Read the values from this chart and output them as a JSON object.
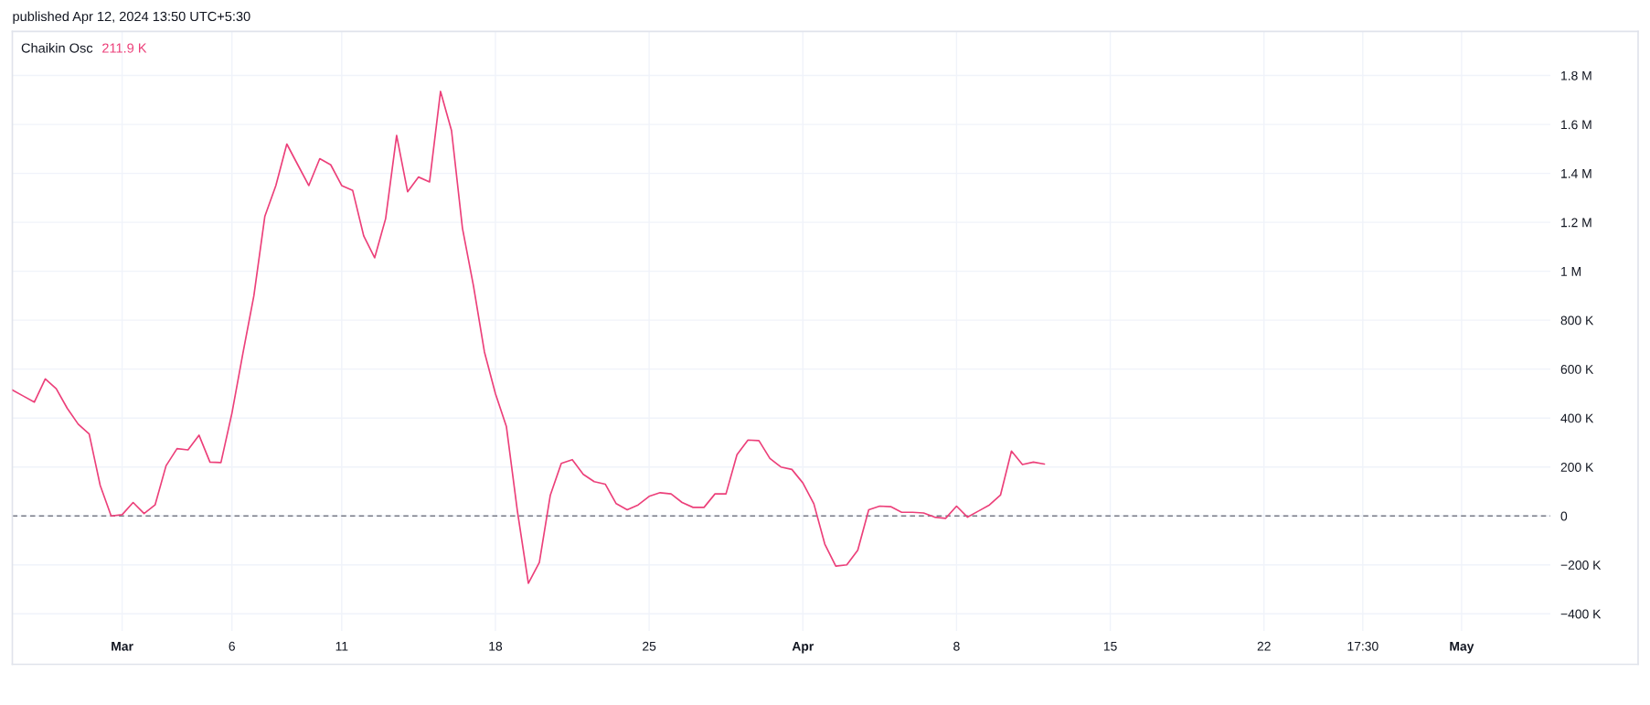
{
  "chart_data": {
    "type": "line",
    "title": "Chaikin Osc",
    "annotations": [
      "211.9 K",
      "published Apr 12, 2024 13:50 UTC+5:30"
    ],
    "x": [
      "2024-02-25T05:30",
      "2024-02-25T17:30",
      "2024-02-26T05:30",
      "2024-02-26T17:30",
      "2024-02-27T05:30",
      "2024-02-27T17:30",
      "2024-02-28T05:30",
      "2024-02-28T17:30",
      "2024-02-29T05:30",
      "2024-02-29T17:30",
      "2024-03-01T05:30",
      "2024-03-01T17:30",
      "2024-03-02T05:30",
      "2024-03-02T17:30",
      "2024-03-03T05:30",
      "2024-03-03T17:30",
      "2024-03-04T05:30",
      "2024-03-04T17:30",
      "2024-03-05T05:30",
      "2024-03-05T17:30",
      "2024-03-06T05:30",
      "2024-03-06T17:30",
      "2024-03-07T05:30",
      "2024-03-07T17:30",
      "2024-03-08T05:30",
      "2024-03-08T17:30",
      "2024-03-09T05:30",
      "2024-03-09T17:30",
      "2024-03-10T05:30",
      "2024-03-10T17:30",
      "2024-03-11T05:30",
      "2024-03-11T17:30",
      "2024-03-12T05:30",
      "2024-03-12T17:30",
      "2024-03-13T05:30",
      "2024-03-13T17:30",
      "2024-03-14T05:30",
      "2024-03-14T17:30",
      "2024-03-15T05:30",
      "2024-03-15T17:30",
      "2024-03-16T05:30",
      "2024-03-16T17:30",
      "2024-03-17T05:30",
      "2024-03-17T17:30",
      "2024-03-18T05:30",
      "2024-03-18T17:30",
      "2024-03-19T05:30",
      "2024-03-19T17:30",
      "2024-03-20T05:30",
      "2024-03-20T17:30",
      "2024-03-21T05:30",
      "2024-03-21T17:30",
      "2024-03-22T05:30",
      "2024-03-22T17:30",
      "2024-03-23T05:30",
      "2024-03-23T17:30",
      "2024-03-24T05:30",
      "2024-03-24T17:30",
      "2024-03-25T05:30",
      "2024-03-25T17:30",
      "2024-03-26T05:30",
      "2024-03-26T17:30",
      "2024-03-27T05:30",
      "2024-03-27T17:30",
      "2024-03-28T05:30",
      "2024-03-28T17:30",
      "2024-03-29T05:30",
      "2024-03-29T17:30",
      "2024-03-30T05:30",
      "2024-03-30T17:30",
      "2024-03-31T05:30",
      "2024-03-31T17:30",
      "2024-04-01T05:30",
      "2024-04-01T17:30",
      "2024-04-02T05:30",
      "2024-04-02T17:30",
      "2024-04-03T05:30",
      "2024-04-03T17:30",
      "2024-04-04T05:30",
      "2024-04-04T17:30",
      "2024-04-05T05:30",
      "2024-04-05T17:30",
      "2024-04-06T05:30",
      "2024-04-06T17:30",
      "2024-04-07T05:30",
      "2024-04-07T17:30",
      "2024-04-08T05:30",
      "2024-04-08T17:30",
      "2024-04-09T05:30",
      "2024-04-09T17:30",
      "2024-04-10T05:30",
      "2024-04-10T17:30",
      "2024-04-11T05:30",
      "2024-04-11T17:30",
      "2024-04-12T05:30"
    ],
    "series": [
      {
        "color": "#ec407a",
        "values": [
          515000,
          490000,
          465000,
          560000,
          520000,
          440000,
          375000,
          335000,
          125000,
          0,
          5000,
          55000,
          10000,
          45000,
          205000,
          275000,
          270000,
          330000,
          220000,
          218000,
          420000,
          665000,
          900000,
          1225000,
          1350000,
          1520000,
          1435000,
          1350000,
          1460000,
          1435000,
          1350000,
          1330000,
          1145000,
          1055000,
          1215000,
          1555000,
          1325000,
          1385000,
          1365000,
          1735000,
          1575000,
          1175000,
          940000,
          670000,
          500000,
          365000,
          20000,
          -275000,
          -190000,
          85000,
          215000,
          230000,
          170000,
          140000,
          130000,
          50000,
          25000,
          45000,
          80000,
          95000,
          90000,
          55000,
          35000,
          35000,
          90000,
          90000,
          250000,
          310000,
          308000,
          235000,
          200000,
          190000,
          135000,
          50000,
          -115000,
          -205000,
          -200000,
          -140000,
          25000,
          40000,
          38000,
          15000,
          15000,
          12000,
          -5000,
          -10000,
          40000,
          -5000,
          20000,
          45000,
          85000,
          265000,
          210000,
          220000,
          211900
        ]
      }
    ],
    "line_style": "solid",
    "xlim": [
      "2024-02-25T05:30",
      "2024-05-05T06:30"
    ],
    "ylim": [
      -470000,
      1980000
    ],
    "xticks": [
      {
        "value": "2024-03-01T05:30",
        "label": "Mar"
      },
      {
        "value": "2024-03-06T05:30",
        "label": "6"
      },
      {
        "value": "2024-03-11T05:30",
        "label": "11"
      },
      {
        "value": "2024-03-18T05:30",
        "label": "18"
      },
      {
        "value": "2024-03-25T05:30",
        "label": "25"
      },
      {
        "value": "2024-04-01T05:30",
        "label": "Apr"
      },
      {
        "value": "2024-04-08T05:30",
        "label": "8"
      },
      {
        "value": "2024-04-15T05:30",
        "label": "15"
      },
      {
        "value": "2024-04-22T05:30",
        "label": "22"
      },
      {
        "value": "2024-04-26T17:30",
        "label": "17:30"
      },
      {
        "value": "2024-05-01T05:30",
        "label": "May"
      }
    ],
    "yticks": [
      {
        "value": -400000,
        "label": "−400 K"
      },
      {
        "value": -200000,
        "label": "−200 K"
      },
      0,
      {
        "value": 200000,
        "label": "200 K"
      },
      {
        "value": 400000,
        "label": "400 K"
      },
      {
        "value": 600000,
        "label": "600 K"
      },
      {
        "value": 800000,
        "label": "800 K"
      },
      {
        "value": 1000000,
        "label": "1 M"
      },
      {
        "value": 1200000,
        "label": "1.2 M"
      },
      {
        "value": 1400000,
        "label": "1.4 M"
      },
      {
        "value": 1600000,
        "label": "1.6 M"
      },
      {
        "value": 1800000,
        "label": "1.8 M"
      }
    ],
    "grid": true,
    "ref_lines": [
      {
        "axis": "y",
        "value": 0,
        "color": "#787b86",
        "line_style": "dashed"
      }
    ]
  }
}
